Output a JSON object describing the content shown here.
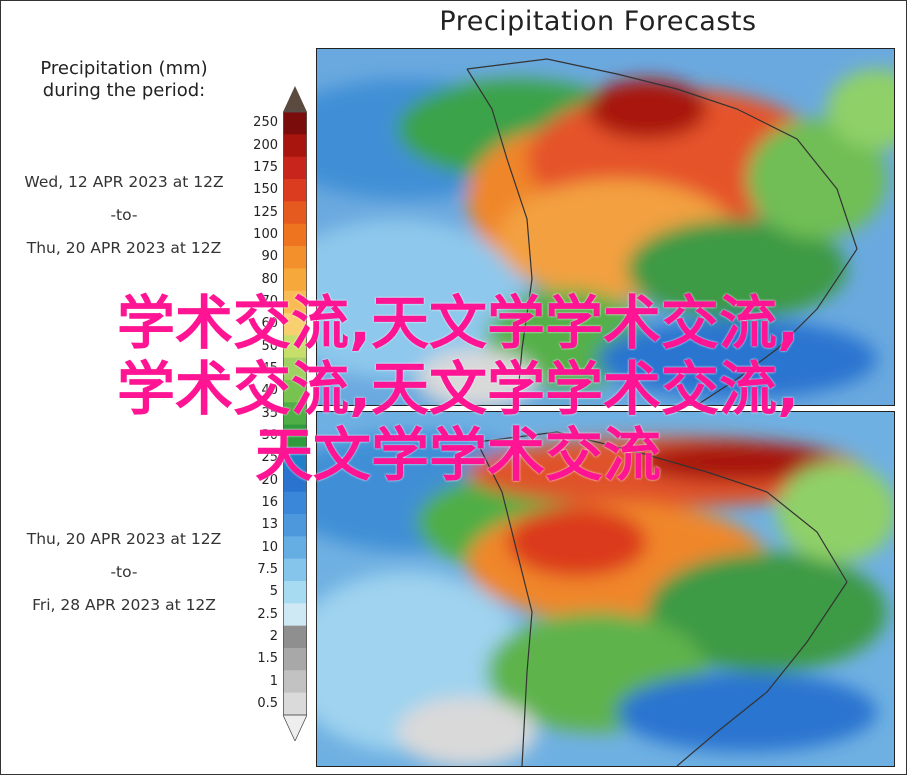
{
  "title": "Precipitation Forecasts",
  "legend": {
    "title_line1": "Precipitation (mm)",
    "title_line2": "during the period:",
    "ticks": [
      "250",
      "200",
      "175",
      "150",
      "125",
      "100",
      "90",
      "80",
      "70",
      "60",
      "50",
      "45",
      "40",
      "35",
      "30",
      "25",
      "20",
      "16",
      "13",
      "10",
      "7.5",
      "5",
      "2.5",
      "2",
      "1.5",
      "1",
      "0.5"
    ],
    "colors": [
      "#7a0c0c",
      "#a8150f",
      "#c8261c",
      "#db3b1e",
      "#e55a1e",
      "#ee7420",
      "#f3902b",
      "#f7a83a",
      "#fabb55",
      "#f9d070",
      "#c6df6a",
      "#9fd062",
      "#78c24f",
      "#4fae45",
      "#2f9b3d",
      "#1f7fc9",
      "#2a74d0",
      "#3a86d8",
      "#4d98dd",
      "#64aee4",
      "#85c5eb",
      "#a7dbf1",
      "#cfe9f4",
      "#8f8f8f",
      "#a8a8a8",
      "#c2c2c2",
      "#dadada"
    ]
  },
  "periods": [
    {
      "start": "Wed, 12 APR 2023 at 12Z",
      "sep": "-to-",
      "end": "Thu, 20 APR 2023 at 12Z"
    },
    {
      "start": "Thu, 20 APR 2023 at 12Z",
      "sep": "-to-",
      "end": "Fri, 28 APR 2023 at 12Z"
    }
  ],
  "watermark": {
    "line1": "学术交流,天文学学术交流,",
    "line2": "学术交流,天文学学术交流,",
    "line3": "天文学学术交流"
  }
}
